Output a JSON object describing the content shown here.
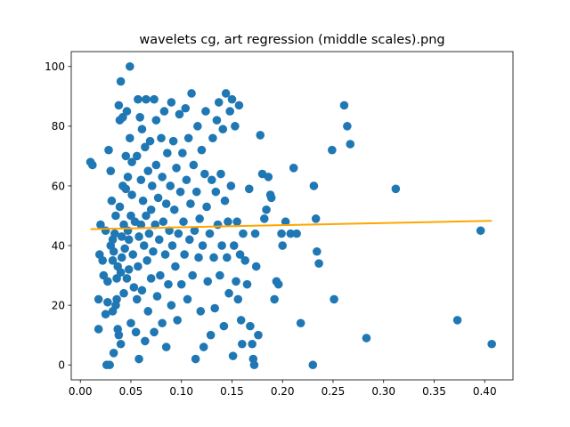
{
  "chart_data": {
    "type": "scatter",
    "title": "wavelets cg, art regression (middle scales).png",
    "xlabel": "",
    "ylabel": "",
    "xlim": [
      -0.009,
      0.428
    ],
    "ylim": [
      -5,
      105
    ],
    "xticks": [
      "0.00",
      "0.05",
      "0.10",
      "0.15",
      "0.20",
      "0.25",
      "0.30",
      "0.35",
      "0.40"
    ],
    "yticks": [
      "0",
      "20",
      "40",
      "60",
      "80",
      "100"
    ],
    "grid": false,
    "legend": "none",
    "colors": {
      "points": "#1f77b4",
      "regression": "#ffa500"
    },
    "series": [
      {
        "kind": "scatter",
        "points": [
          [
            0.01,
            68
          ],
          [
            0.012,
            67
          ],
          [
            0.018,
            12
          ],
          [
            0.018,
            22
          ],
          [
            0.019,
            37
          ],
          [
            0.02,
            47
          ],
          [
            0.022,
            35
          ],
          [
            0.023,
            30
          ],
          [
            0.025,
            17
          ],
          [
            0.025,
            45
          ],
          [
            0.026,
            0
          ],
          [
            0.027,
            21
          ],
          [
            0.027,
            28
          ],
          [
            0.028,
            72
          ],
          [
            0.029,
            0
          ],
          [
            0.03,
            65
          ],
          [
            0.03,
            40
          ],
          [
            0.031,
            55
          ],
          [
            0.032,
            35
          ],
          [
            0.032,
            42
          ],
          [
            0.032,
            18
          ],
          [
            0.033,
            38
          ],
          [
            0.033,
            4
          ],
          [
            0.034,
            44
          ],
          [
            0.035,
            20
          ],
          [
            0.035,
            50
          ],
          [
            0.036,
            29
          ],
          [
            0.036,
            22
          ],
          [
            0.037,
            33
          ],
          [
            0.037,
            12
          ],
          [
            0.038,
            87
          ],
          [
            0.038,
            10
          ],
          [
            0.039,
            53
          ],
          [
            0.039,
            82
          ],
          [
            0.04,
            95
          ],
          [
            0.04,
            31
          ],
          [
            0.04,
            7
          ],
          [
            0.041,
            36
          ],
          [
            0.041,
            43
          ],
          [
            0.042,
            83
          ],
          [
            0.042,
            60
          ],
          [
            0.043,
            24
          ],
          [
            0.043,
            47
          ],
          [
            0.044,
            39
          ],
          [
            0.045,
            59
          ],
          [
            0.045,
            70
          ],
          [
            0.046,
            85
          ],
          [
            0.046,
            29
          ],
          [
            0.047,
            63
          ],
          [
            0.047,
            45
          ],
          [
            0.048,
            42
          ],
          [
            0.048,
            32
          ],
          [
            0.049,
            100
          ],
          [
            0.049,
            76
          ],
          [
            0.05,
            50
          ],
          [
            0.05,
            14
          ],
          [
            0.051,
            68
          ],
          [
            0.051,
            57
          ],
          [
            0.052,
            37
          ],
          [
            0.053,
            26
          ],
          [
            0.054,
            48
          ],
          [
            0.055,
            11
          ],
          [
            0.056,
            70
          ],
          [
            0.056,
            22
          ],
          [
            0.057,
            89
          ],
          [
            0.057,
            33
          ],
          [
            0.058,
            43
          ],
          [
            0.058,
            2
          ],
          [
            0.059,
            83
          ],
          [
            0.06,
            62
          ],
          [
            0.06,
            47
          ],
          [
            0.061,
            79
          ],
          [
            0.061,
            25
          ],
          [
            0.062,
            55
          ],
          [
            0.063,
            40
          ],
          [
            0.064,
            73
          ],
          [
            0.064,
            8
          ],
          [
            0.065,
            89
          ],
          [
            0.065,
            50
          ],
          [
            0.066,
            35
          ],
          [
            0.067,
            65
          ],
          [
            0.067,
            18
          ],
          [
            0.068,
            44
          ],
          [
            0.069,
            75
          ],
          [
            0.07,
            52
          ],
          [
            0.07,
            29
          ],
          [
            0.071,
            60
          ],
          [
            0.072,
            38
          ],
          [
            0.073,
            89
          ],
          [
            0.073,
            11
          ],
          [
            0.074,
            47
          ],
          [
            0.075,
            82
          ],
          [
            0.075,
            67
          ],
          [
            0.076,
            23
          ],
          [
            0.077,
            56
          ],
          [
            0.078,
            42
          ],
          [
            0.079,
            30
          ],
          [
            0.08,
            76
          ],
          [
            0.081,
            63
          ],
          [
            0.081,
            14
          ],
          [
            0.082,
            48
          ],
          [
            0.083,
            85
          ],
          [
            0.084,
            37
          ],
          [
            0.085,
            54
          ],
          [
            0.085,
            6
          ],
          [
            0.086,
            71
          ],
          [
            0.087,
            27
          ],
          [
            0.088,
            45
          ],
          [
            0.089,
            60
          ],
          [
            0.09,
            88
          ],
          [
            0.09,
            20
          ],
          [
            0.091,
            40
          ],
          [
            0.092,
            75
          ],
          [
            0.093,
            52
          ],
          [
            0.094,
            33
          ],
          [
            0.095,
            66
          ],
          [
            0.096,
            15
          ],
          [
            0.097,
            44
          ],
          [
            0.098,
            84
          ],
          [
            0.099,
            58
          ],
          [
            0.1,
            27
          ],
          [
            0.101,
            71
          ],
          [
            0.102,
            48
          ],
          [
            0.103,
            37
          ],
          [
            0.104,
            86
          ],
          [
            0.105,
            62
          ],
          [
            0.106,
            22
          ],
          [
            0.107,
            76
          ],
          [
            0.108,
            42
          ],
          [
            0.109,
            54
          ],
          [
            0.11,
            91
          ],
          [
            0.111,
            30
          ],
          [
            0.112,
            67
          ],
          [
            0.113,
            45
          ],
          [
            0.114,
            2
          ],
          [
            0.115,
            58
          ],
          [
            0.116,
            80
          ],
          [
            0.117,
            36
          ],
          [
            0.118,
            49
          ],
          [
            0.119,
            18
          ],
          [
            0.12,
            72
          ],
          [
            0.121,
            40
          ],
          [
            0.122,
            6
          ],
          [
            0.123,
            64
          ],
          [
            0.124,
            85
          ],
          [
            0.125,
            53
          ],
          [
            0.126,
            28
          ],
          [
            0.128,
            44
          ],
          [
            0.129,
            10
          ],
          [
            0.13,
            62
          ],
          [
            0.131,
            76
          ],
          [
            0.132,
            36
          ],
          [
            0.133,
            19
          ],
          [
            0.134,
            58
          ],
          [
            0.135,
            82
          ],
          [
            0.136,
            47
          ],
          [
            0.137,
            88
          ],
          [
            0.138,
            30
          ],
          [
            0.139,
            64
          ],
          [
            0.14,
            40
          ],
          [
            0.141,
            79
          ],
          [
            0.142,
            13
          ],
          [
            0.143,
            55
          ],
          [
            0.144,
            91
          ],
          [
            0.145,
            36
          ],
          [
            0.146,
            48
          ],
          [
            0.147,
            24
          ],
          [
            0.148,
            85
          ],
          [
            0.149,
            60
          ],
          [
            0.15,
            89
          ],
          [
            0.151,
            3
          ],
          [
            0.152,
            40
          ],
          [
            0.153,
            80
          ],
          [
            0.154,
            28
          ],
          [
            0.155,
            48
          ],
          [
            0.156,
            22
          ],
          [
            0.157,
            87
          ],
          [
            0.158,
            37
          ],
          [
            0.159,
            15
          ],
          [
            0.16,
            7
          ],
          [
            0.161,
            44
          ],
          [
            0.163,
            35
          ],
          [
            0.165,
            27
          ],
          [
            0.167,
            59
          ],
          [
            0.168,
            13
          ],
          [
            0.17,
            7
          ],
          [
            0.171,
            2
          ],
          [
            0.172,
            0
          ],
          [
            0.173,
            44
          ],
          [
            0.174,
            33
          ],
          [
            0.176,
            10
          ],
          [
            0.178,
            77
          ],
          [
            0.18,
            64
          ],
          [
            0.182,
            49
          ],
          [
            0.184,
            52
          ],
          [
            0.186,
            63
          ],
          [
            0.188,
            57
          ],
          [
            0.189,
            56
          ],
          [
            0.192,
            22
          ],
          [
            0.194,
            28
          ],
          [
            0.196,
            27
          ],
          [
            0.199,
            44
          ],
          [
            0.2,
            40
          ],
          [
            0.203,
            48
          ],
          [
            0.208,
            44
          ],
          [
            0.211,
            66
          ],
          [
            0.214,
            44
          ],
          [
            0.218,
            14
          ],
          [
            0.23,
            0
          ],
          [
            0.231,
            60
          ],
          [
            0.233,
            49
          ],
          [
            0.234,
            38
          ],
          [
            0.236,
            34
          ],
          [
            0.249,
            72
          ],
          [
            0.251,
            22
          ],
          [
            0.261,
            87
          ],
          [
            0.264,
            80
          ],
          [
            0.267,
            74
          ],
          [
            0.283,
            9
          ],
          [
            0.312,
            59
          ],
          [
            0.373,
            15
          ],
          [
            0.396,
            45
          ],
          [
            0.407,
            7
          ]
        ]
      },
      {
        "kind": "line",
        "points": [
          [
            0.01,
            45.5
          ],
          [
            0.407,
            48.3
          ]
        ]
      }
    ]
  }
}
